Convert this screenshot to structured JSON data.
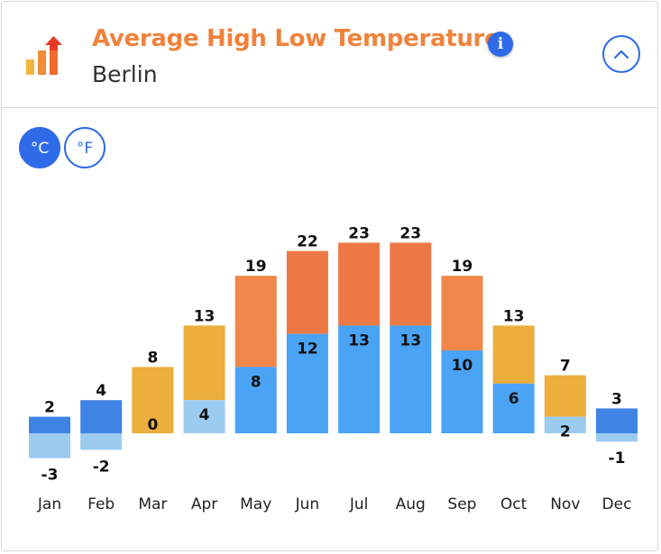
{
  "header": {
    "title": "Average High Low Temperature",
    "subtitle": "Berlin",
    "info_icon": "i"
  },
  "units": {
    "celsius_label": "°C",
    "fahrenheit_label": "°F",
    "selected": "celsius"
  },
  "colors": {
    "title": "#f0823c",
    "accent": "#2f6be8",
    "cold_dark": "#3f84e5",
    "cold_light": "#9ccbf0",
    "low_mid": "#4aa3f4",
    "warm": "#ecae3c",
    "hot": "#ef874a",
    "hottest": "#ee7845"
  },
  "chart_data": {
    "type": "bar",
    "categories": [
      "Jan",
      "Feb",
      "Mar",
      "Apr",
      "May",
      "Jun",
      "Jul",
      "Aug",
      "Sep",
      "Oct",
      "Nov",
      "Dec"
    ],
    "series": [
      {
        "values": [
          2,
          4,
          8,
          13,
          19,
          22,
          23,
          23,
          19,
          13,
          7,
          3
        ]
      },
      {
        "values": [
          -3,
          -2,
          0,
          4,
          8,
          12,
          13,
          13,
          10,
          6,
          2,
          -1
        ]
      }
    ],
    "unit": "°C",
    "ylim": [
      -3,
      23
    ],
    "grid": false,
    "legend": "none"
  }
}
